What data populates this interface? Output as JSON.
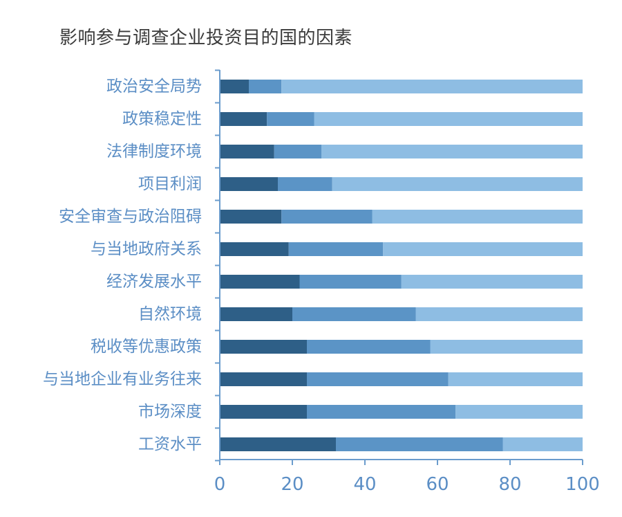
{
  "chart_data": {
    "type": "bar",
    "orientation": "horizontal",
    "stacked": true,
    "title": "影响参与调查企业投资目的国的因素",
    "xlabel": "",
    "ylabel": "",
    "xlim": [
      0,
      100
    ],
    "x_ticks": [
      0,
      20,
      40,
      60,
      80,
      100
    ],
    "grid": false,
    "legend": "none",
    "categories": [
      "政治安全局势",
      "政策稳定性",
      "法律制度环境",
      "项目利润",
      "安全审查与政治阻碍",
      "与当地政府关系",
      "经济发展水平",
      "自然环境",
      "税收等优惠政策",
      "与当地企业有业务往来",
      "市场深度",
      "工资水平"
    ],
    "series": [
      {
        "values": [
          8,
          13,
          15,
          16,
          17,
          19,
          22,
          20,
          24,
          24,
          24,
          32
        ],
        "color": "#2e5f87"
      },
      {
        "values": [
          9,
          13,
          13,
          15,
          25,
          26,
          28,
          34,
          34,
          39,
          41,
          46
        ],
        "color": "#5b94c6"
      },
      {
        "values": [
          83,
          74,
          72,
          69,
          58,
          55,
          50,
          46,
          42,
          37,
          35,
          22
        ],
        "color": "#8ebde3"
      }
    ],
    "axis_color": "#6b9ccd",
    "label_color": "#5b8ec5"
  }
}
